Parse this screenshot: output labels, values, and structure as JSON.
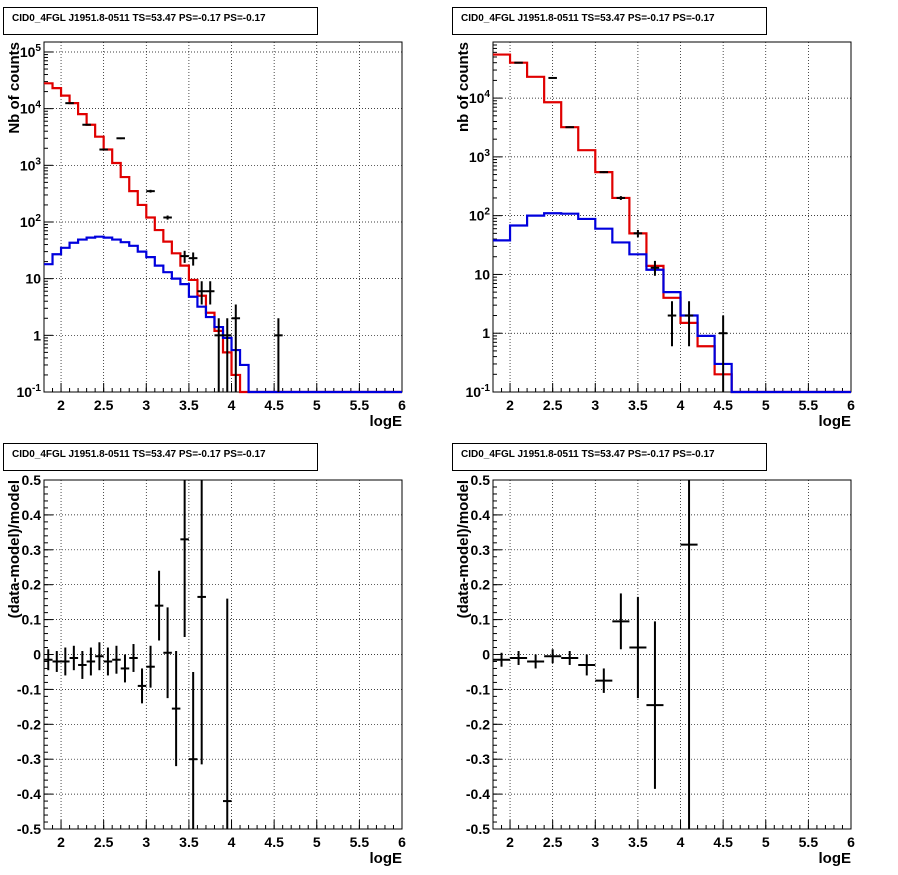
{
  "chart_data": [
    {
      "type": "line",
      "title": "CID0_4FGL J1951.8-0511 TS=53.47 PS=-0.17 PS=-0.17",
      "xlabel": "logE",
      "ylabel": "Nb of counts",
      "xlim": [
        1.8,
        6
      ],
      "ylim": [
        0.1,
        150000
      ],
      "yscale": "log",
      "grid": true,
      "x_ticks": [
        "2",
        "2.5",
        "3",
        "3.5",
        "4",
        "4.5",
        "5",
        "5.5",
        "6"
      ],
      "y_ticks": [
        "10^{-1}",
        "1",
        "10",
        "10^{2}",
        "10^{3}",
        "10^{4}",
        "10^{5}"
      ],
      "bin_edges": [
        1.8,
        1.9,
        2.0,
        2.1,
        2.2,
        2.3,
        2.4,
        2.5,
        2.6,
        2.7,
        2.8,
        2.9,
        3.0,
        3.1,
        3.2,
        3.3,
        3.4,
        3.5,
        3.6,
        3.7,
        3.8,
        3.9,
        4.0,
        4.1,
        4.2,
        4.3,
        4.4,
        4.5,
        4.6,
        4.7,
        4.8,
        4.9,
        5.0,
        5.1,
        5.2,
        5.3,
        5.4,
        5.5,
        5.6,
        5.7,
        5.8,
        5.9,
        6.0
      ],
      "series": [
        {
          "color": "#e00000",
          "values": [
            28000,
            23000,
            17000,
            12500,
            8000,
            5200,
            3200,
            1900,
            1100,
            620,
            350,
            200,
            120,
            72,
            45,
            28,
            17,
            9.5,
            5,
            2.5,
            1.2,
            0.5,
            0.2,
            0.1,
            0.1,
            0.1,
            0.1,
            0.1,
            0.1,
            0.1,
            0.1,
            0.1,
            0.1,
            0.1,
            0.1,
            0.1,
            0.1,
            0.1,
            0.1,
            0.1,
            0.1,
            0.1
          ]
        },
        {
          "color": "#0000dd",
          "values": [
            18,
            27,
            35,
            43,
            49,
            53,
            55,
            53,
            49,
            44,
            38,
            30,
            24,
            17,
            13,
            10,
            8,
            4.8,
            3.2,
            2.1,
            1.4,
            0.9,
            0.55,
            0.3,
            0.1,
            0.1,
            0.1,
            0.1,
            0.1,
            0.1,
            0.1,
            0.1,
            0.1,
            0.1,
            0.1,
            0.1,
            0.1,
            0.1,
            0.1,
            0.1,
            0.1,
            0.1
          ]
        }
      ],
      "points": [
        {
          "x": 2.1,
          "y": 12500,
          "ylo": 12300,
          "yhi": 12700
        },
        {
          "x": 2.3,
          "y": 5200,
          "ylo": 5100,
          "yhi": 5300
        },
        {
          "x": 2.5,
          "y": 1900,
          "ylo": 1850,
          "yhi": 1950
        },
        {
          "x": 2.7,
          "y": 3000,
          "ylo": 2900,
          "yhi": 3100
        },
        {
          "x": 3.05,
          "y": 350,
          "ylo": 330,
          "yhi": 370
        },
        {
          "x": 3.25,
          "y": 120,
          "ylo": 110,
          "yhi": 130
        },
        {
          "x": 3.45,
          "y": 25,
          "ylo": 19,
          "yhi": 31
        },
        {
          "x": 3.55,
          "y": 23,
          "ylo": 17,
          "yhi": 29
        },
        {
          "x": 3.65,
          "y": 6,
          "ylo": 3.5,
          "yhi": 9
        },
        {
          "x": 3.75,
          "y": 6,
          "ylo": 3.5,
          "yhi": 9
        },
        {
          "x": 3.85,
          "y": 1,
          "ylo": 0.1,
          "yhi": 2
        },
        {
          "x": 3.95,
          "y": 1,
          "ylo": 0.1,
          "yhi": 2
        },
        {
          "x": 4.05,
          "y": 2,
          "ylo": 0.1,
          "yhi": 3.5
        },
        {
          "x": 4.55,
          "y": 1,
          "ylo": 0.1,
          "yhi": 2
        }
      ]
    },
    {
      "type": "line",
      "title": "CID0_4FGL J1951.8-0511 TS=53.47 PS=-0.17 PS=-0.17",
      "xlabel": "logE",
      "ylabel": "nb of counts",
      "xlim": [
        1.8,
        6
      ],
      "ylim": [
        0.1,
        90000
      ],
      "yscale": "log",
      "grid": true,
      "x_ticks": [
        "2",
        "2.5",
        "3",
        "3.5",
        "4",
        "4.5",
        "5",
        "5.5",
        "6"
      ],
      "y_ticks": [
        "10^{-1}",
        "1",
        "10",
        "10^{2}",
        "10^{3}",
        "10^{4}"
      ],
      "bin_edges": [
        1.8,
        2.0,
        2.2,
        2.4,
        2.6,
        2.8,
        3.0,
        3.2,
        3.4,
        3.6,
        3.8,
        4.0,
        4.2,
        4.4,
        4.6,
        4.8,
        5.0,
        5.2,
        5.4,
        5.6,
        5.8,
        6.0
      ],
      "series": [
        {
          "color": "#e00000",
          "values": [
            55000,
            40000,
            23000,
            8500,
            3200,
            1300,
            550,
            200,
            50,
            14,
            4,
            1.5,
            0.6,
            0.2,
            0.1,
            0.1,
            0.1,
            0.1,
            0.1,
            0.1,
            0.1
          ]
        },
        {
          "color": "#0000dd",
          "values": [
            38,
            68,
            100,
            110,
            108,
            88,
            60,
            35,
            22,
            12,
            5,
            2,
            0.9,
            0.3,
            0.1,
            0.1,
            0.1,
            0.1,
            0.1,
            0.1,
            0.1
          ]
        }
      ],
      "points": [
        {
          "x": 2.1,
          "y": 40000,
          "ylo": 39500,
          "yhi": 40500
        },
        {
          "x": 2.5,
          "y": 22000,
          "ylo": 21700,
          "yhi": 22300
        },
        {
          "x": 2.7,
          "y": 3200,
          "ylo": 3100,
          "yhi": 3300
        },
        {
          "x": 3.1,
          "y": 550,
          "ylo": 530,
          "yhi": 570
        },
        {
          "x": 3.3,
          "y": 200,
          "ylo": 185,
          "yhi": 215
        },
        {
          "x": 3.5,
          "y": 50,
          "ylo": 43,
          "yhi": 57
        },
        {
          "x": 3.7,
          "y": 13,
          "ylo": 9.5,
          "yhi": 17
        },
        {
          "x": 3.9,
          "y": 2,
          "ylo": 0.6,
          "yhi": 3.5
        },
        {
          "x": 4.1,
          "y": 2,
          "ylo": 0.6,
          "yhi": 3.5
        },
        {
          "x": 4.5,
          "y": 1,
          "ylo": 0.1,
          "yhi": 2
        }
      ]
    },
    {
      "type": "scatter",
      "title": "CID0_4FGL J1951.8-0511 TS=53.47 PS=-0.17 PS=-0.17",
      "xlabel": "logE",
      "ylabel": "(data-model)/model",
      "xlim": [
        1.8,
        6
      ],
      "ylim": [
        -0.5,
        0.5
      ],
      "grid": true,
      "x_ticks": [
        "2",
        "2.5",
        "3",
        "3.5",
        "4",
        "4.5",
        "5",
        "5.5",
        "6"
      ],
      "y_ticks": [
        "-0.5",
        "-0.4",
        "-0.3",
        "-0.2",
        "-0.1",
        "0",
        "0.1",
        "0.2",
        "0.3",
        "0.4",
        "0.5"
      ],
      "bin_width": 0.1,
      "points": [
        {
          "x": 1.85,
          "y": -0.015,
          "err": 0.03
        },
        {
          "x": 1.95,
          "y": -0.02,
          "err": 0.03
        },
        {
          "x": 2.05,
          "y": -0.02,
          "err": 0.04
        },
        {
          "x": 2.15,
          "y": -0.01,
          "err": 0.035
        },
        {
          "x": 2.25,
          "y": -0.03,
          "err": 0.04
        },
        {
          "x": 2.35,
          "y": -0.02,
          "err": 0.04
        },
        {
          "x": 2.45,
          "y": -0.005,
          "err": 0.04
        },
        {
          "x": 2.55,
          "y": -0.02,
          "err": 0.04
        },
        {
          "x": 2.65,
          "y": -0.015,
          "err": 0.04
        },
        {
          "x": 2.75,
          "y": -0.04,
          "err": 0.04
        },
        {
          "x": 2.85,
          "y": -0.01,
          "err": 0.04
        },
        {
          "x": 2.95,
          "y": -0.09,
          "err": 0.05
        },
        {
          "x": 3.05,
          "y": -0.035,
          "err": 0.06
        },
        {
          "x": 3.15,
          "y": 0.14,
          "err": 0.1
        },
        {
          "x": 3.25,
          "y": 0.005,
          "err": 0.13
        },
        {
          "x": 3.35,
          "y": -0.155,
          "err": 0.165
        },
        {
          "x": 3.45,
          "y": 0.33,
          "err": 0.28
        },
        {
          "x": 3.55,
          "y": -0.3,
          "err": 0.25
        },
        {
          "x": 3.65,
          "y": 0.165,
          "err": 0.48
        },
        {
          "x": 3.95,
          "y": -0.42,
          "err": 0.58
        }
      ]
    },
    {
      "type": "scatter",
      "title": "CID0_4FGL J1951.8-0511 TS=53.47 PS=-0.17 PS=-0.17",
      "xlabel": "logE",
      "ylabel": "(data-model)/model",
      "xlim": [
        1.8,
        6
      ],
      "ylim": [
        -0.5,
        0.5
      ],
      "grid": true,
      "x_ticks": [
        "2",
        "2.5",
        "3",
        "3.5",
        "4",
        "4.5",
        "5",
        "5.5",
        "6"
      ],
      "y_ticks": [
        "-0.5",
        "-0.4",
        "-0.3",
        "-0.2",
        "-0.1",
        "0",
        "0.1",
        "0.2",
        "0.3",
        "0.4",
        "0.5"
      ],
      "bin_width": 0.2,
      "points": [
        {
          "x": 1.9,
          "y": -0.015,
          "err": 0.02
        },
        {
          "x": 2.1,
          "y": -0.01,
          "err": 0.02
        },
        {
          "x": 2.3,
          "y": -0.02,
          "err": 0.02
        },
        {
          "x": 2.5,
          "y": -0.005,
          "err": 0.02
        },
        {
          "x": 2.7,
          "y": -0.01,
          "err": 0.02
        },
        {
          "x": 2.9,
          "y": -0.03,
          "err": 0.03
        },
        {
          "x": 3.1,
          "y": -0.075,
          "err": 0.035
        },
        {
          "x": 3.3,
          "y": 0.095,
          "err": 0.08
        },
        {
          "x": 3.5,
          "y": 0.02,
          "err": 0.145
        },
        {
          "x": 3.7,
          "y": -0.145,
          "err": 0.24
        },
        {
          "x": 4.1,
          "y": 0.315,
          "err": 0.82
        }
      ]
    }
  ]
}
